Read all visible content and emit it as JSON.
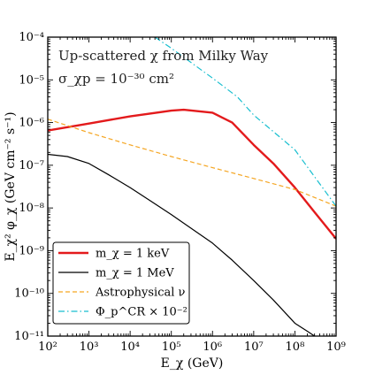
{
  "chart_data": {
    "type": "line",
    "title": "",
    "xlabel": "E_χ (GeV)",
    "ylabel": "E_χ² φ_χ (GeV cm⁻² s⁻¹)",
    "x_scale": "log",
    "y_scale": "log",
    "xlim": [
      100,
      1000000000
    ],
    "ylim": [
      1e-11,
      0.0001
    ],
    "x_ticks": [
      {
        "value": 100,
        "label": "10²"
      },
      {
        "value": 1000,
        "label": "10³"
      },
      {
        "value": 10000,
        "label": "10⁴"
      },
      {
        "value": 100000,
        "label": "10⁵"
      },
      {
        "value": 1000000,
        "label": "10⁶"
      },
      {
        "value": 10000000,
        "label": "10⁷"
      },
      {
        "value": 100000000,
        "label": "10⁸"
      },
      {
        "value": 1000000000,
        "label": "10⁹"
      }
    ],
    "y_ticks": [
      {
        "value": 1e-11,
        "label": "10⁻¹¹"
      },
      {
        "value": 1e-10,
        "label": "10⁻¹⁰"
      },
      {
        "value": 1e-09,
        "label": "10⁻⁹"
      },
      {
        "value": 1e-08,
        "label": "10⁻⁸"
      },
      {
        "value": 1e-07,
        "label": "10⁻⁷"
      },
      {
        "value": 1e-06,
        "label": "10⁻⁶"
      },
      {
        "value": 1e-05,
        "label": "10⁻⁵"
      },
      {
        "value": 0.0001,
        "label": "10⁻⁴"
      }
    ],
    "grid": false,
    "legend_position": "bottom-left",
    "annotations": [
      "Up-scattered χ from Milky Way",
      "σ_χp = 10⁻³⁰ cm²"
    ],
    "series": [
      {
        "name": "m_χ = 1 keV",
        "color": "#e31a1c",
        "style": "solid",
        "x": [
          100,
          1000,
          10000,
          100000,
          200000,
          1000000,
          3000000,
          10000000,
          30000000,
          100000000,
          300000000,
          1000000000
        ],
        "y": [
          6.5e-07,
          9.5e-07,
          1.4e-06,
          1.9e-06,
          2e-06,
          1.7e-06,
          1e-06,
          3e-07,
          1.1e-07,
          3e-08,
          8e-09,
          1.9e-09
        ]
      },
      {
        "name": "m_χ = 1 MeV",
        "color": "#000000",
        "style": "solid",
        "x": [
          100,
          300,
          1000,
          3000,
          10000,
          30000,
          100000,
          1000000,
          3000000,
          10000000,
          30000000,
          100000000,
          200000000,
          300000000
        ],
        "y": [
          1.8e-07,
          1.6e-07,
          1.1e-07,
          6e-08,
          3e-08,
          1.5e-08,
          7e-09,
          1.5e-09,
          6e-10,
          2e-10,
          7e-11,
          2e-11,
          1.3e-11,
          1e-11
        ]
      },
      {
        "name": "Astrophysical ν",
        "color": "#f5a623",
        "style": "dashed",
        "x": [
          100,
          1000,
          10000,
          100000,
          1000000,
          10000000,
          100000000,
          1000000000
        ],
        "y": [
          1.2e-06,
          5.8e-07,
          3e-07,
          1.6e-07,
          8.8e-08,
          4.9e-08,
          2.7e-08,
          1.1e-08
        ]
      },
      {
        "name": "Φ_p^CR × 10⁻²",
        "color": "#17becf",
        "style": "dashdot",
        "x": [
          40000,
          100000,
          1000000,
          4000000,
          10000000,
          100000000,
          1000000000
        ],
        "y": [
          0.0001,
          5.5e-05,
          1.1e-05,
          4e-06,
          1.5e-06,
          2.3e-07,
          1.1e-08
        ]
      }
    ]
  }
}
